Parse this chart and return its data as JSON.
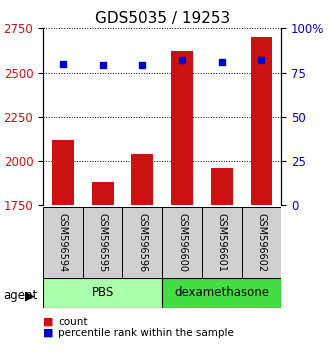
{
  "title": "GDS5035 / 19253",
  "samples": [
    "GSM596594",
    "GSM596595",
    "GSM596596",
    "GSM596600",
    "GSM596601",
    "GSM596602"
  ],
  "counts": [
    2120,
    1880,
    2040,
    2620,
    1960,
    2700
  ],
  "percentiles": [
    80,
    79,
    79,
    82,
    81,
    82
  ],
  "groups": [
    "PBS",
    "PBS",
    "PBS",
    "dexamethasone",
    "dexamethasone",
    "dexamethasone"
  ],
  "group_colors": {
    "PBS": "#aaffaa",
    "dexamethasone": "#44dd44"
  },
  "bar_color": "#cc1111",
  "dot_color": "#0000cc",
  "ylim_left": [
    1750,
    2750
  ],
  "ylim_right": [
    0,
    100
  ],
  "yticks_left": [
    1750,
    2000,
    2250,
    2500,
    2750
  ],
  "yticks_right": [
    0,
    25,
    50,
    75,
    100
  ],
  "ytick_labels_right": [
    "0",
    "25",
    "50",
    "75",
    "100%"
  ],
  "title_fontsize": 11,
  "tick_fontsize": 8.5,
  "bar_width": 0.55,
  "background_color": "#ffffff"
}
